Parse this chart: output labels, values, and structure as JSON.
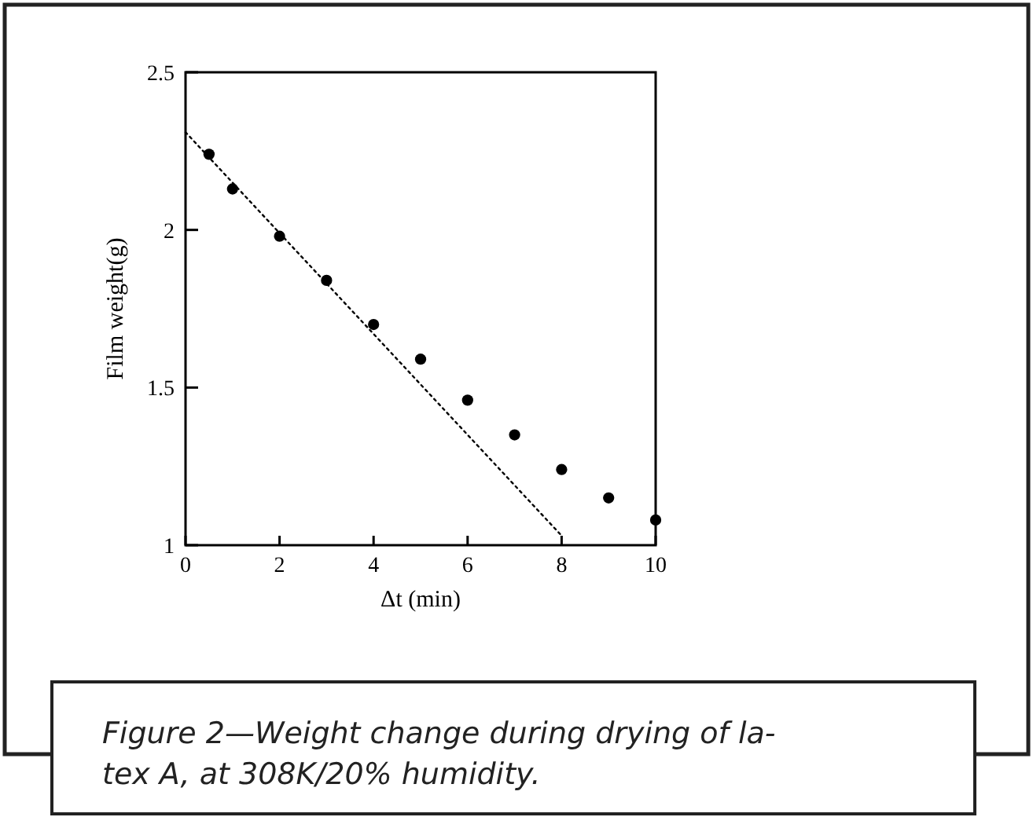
{
  "chart_data": {
    "type": "scatter",
    "xlabel": "Δt (min)",
    "ylabel": "Film weight(g)",
    "xlim": [
      0,
      10
    ],
    "xticks": [
      0,
      2,
      4,
      6,
      8,
      10
    ],
    "ylim": [
      1,
      2.5
    ],
    "yticks": [
      1,
      1.5,
      2,
      2.5
    ],
    "series": [
      {
        "color": "#000000",
        "marker": "circle",
        "x": [
          0.5,
          1,
          2,
          3,
          4,
          5,
          6,
          7,
          8,
          9,
          10
        ],
        "values": [
          2.24,
          2.13,
          1.98,
          1.84,
          1.7,
          1.59,
          1.46,
          1.35,
          1.24,
          1.15,
          1.08
        ]
      },
      {
        "type": "line",
        "color": "#000000",
        "line_style": "dotted",
        "marker": "none",
        "x": [
          0,
          8
        ],
        "values": [
          2.31,
          1.03
        ]
      }
    ],
    "grid": false,
    "annotations": [
      "Figure 2—Weight change during drying of la-",
      "tex A, at 308K/20% humidity."
    ]
  }
}
